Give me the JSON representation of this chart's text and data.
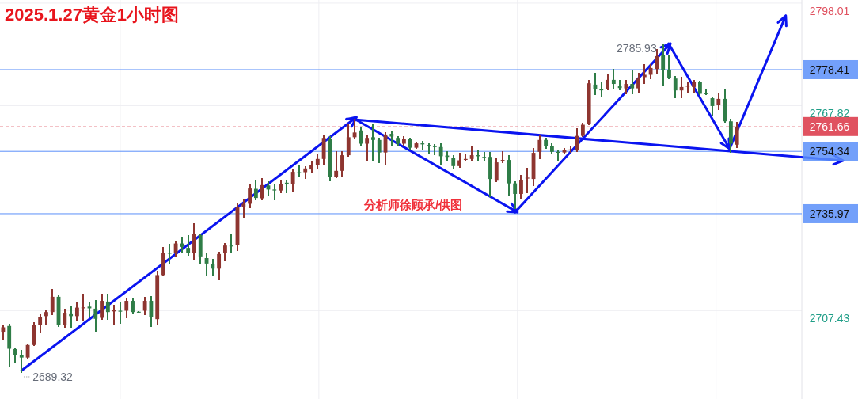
{
  "chart_data": {
    "type": "candlestick",
    "title": "2025.1.27黄金1小时图",
    "categories": [
      null,
      null,
      null,
      null,
      null,
      null,
      null,
      null,
      null,
      null,
      null,
      null,
      null,
      null,
      null,
      null,
      null,
      null,
      null,
      null,
      null,
      null,
      null,
      null,
      null,
      null,
      null,
      null,
      null,
      null,
      null,
      null,
      null,
      null,
      null,
      null,
      null,
      null,
      null,
      null,
      null,
      null,
      null,
      null,
      null,
      null,
      null,
      null,
      null,
      null,
      null,
      null,
      null,
      null,
      null,
      null,
      null,
      null,
      null,
      null,
      null,
      null,
      null,
      null,
      null,
      null,
      null,
      null,
      null,
      null,
      null,
      null,
      null,
      null,
      null,
      null,
      null,
      null,
      null,
      null,
      null,
      null,
      null,
      null,
      null,
      null,
      null,
      null,
      null,
      null,
      null,
      null,
      null,
      null,
      null,
      null,
      null,
      null,
      null,
      null,
      null,
      null,
      null,
      null,
      null,
      null,
      null,
      null,
      null,
      null,
      null,
      null,
      null,
      null,
      null,
      null,
      null,
      null,
      null,
      null,
      null,
      null,
      null,
      null,
      null,
      null,
      null,
      null,
      null,
      null
    ],
    "ohlc": [
      [
        2701.2,
        2702.9,
        2699.0,
        2702.5
      ],
      [
        2702.9,
        2703.3,
        2690.9,
        2696.2
      ],
      [
        2696.1,
        2696.2,
        2692.4,
        2694.4
      ],
      [
        2694.4,
        2695.5,
        2689.32,
        2693.6
      ],
      [
        2693.6,
        2697.5,
        2693.6,
        2697.3
      ],
      [
        2697.3,
        2703.7,
        2697.3,
        2703.2
      ],
      [
        2703.2,
        2706.4,
        2701.2,
        2705.6
      ],
      [
        2705.8,
        2707.4,
        2703.3,
        2707.0
      ],
      [
        2707.0,
        2713.6,
        2706.4,
        2711.5
      ],
      [
        2711.5,
        2711.6,
        2702.9,
        2703.3
      ],
      [
        2703.3,
        2707.8,
        2702.7,
        2706.8
      ],
      [
        2706.6,
        2708.6,
        2702.7,
        2705.8
      ],
      [
        2705.8,
        2709.8,
        2704.7,
        2708.3
      ],
      [
        2708.1,
        2712.1,
        2704.7,
        2708.4
      ],
      [
        2708.6,
        2709.8,
        2705.6,
        2708.1
      ],
      [
        2708.0,
        2710.3,
        2701.4,
        2705.0
      ],
      [
        2705.3,
        2712.1,
        2705.0,
        2710.3
      ],
      [
        2710.1,
        2712.1,
        2705.0,
        2707.0
      ],
      [
        2707.2,
        2708.8,
        2703.2,
        2707.6
      ],
      [
        2707.4,
        2709.7,
        2703.7,
        2707.3
      ],
      [
        2707.4,
        2711.1,
        2705.4,
        2710.3
      ],
      [
        2710.3,
        2711.1,
        2706.8,
        2707.0
      ],
      [
        2707.1,
        2707.1,
        2707.0,
        2707.0
      ],
      [
        2707.4,
        2711.2,
        2706.4,
        2710.3
      ],
      [
        2710.3,
        2711.5,
        2702.9,
        2705.5
      ],
      [
        2704.9,
        2718.9,
        2703.3,
        2717.9
      ],
      [
        2717.9,
        2725.9,
        2717.7,
        2724.5
      ],
      [
        2724.5,
        2726.9,
        2721.3,
        2724.2
      ],
      [
        2724.4,
        2727.8,
        2723.5,
        2727.2
      ],
      [
        2727.2,
        2729.0,
        2724.7,
        2726.2
      ],
      [
        2725.9,
        2729.4,
        2723.9,
        2724.5
      ],
      [
        2724.4,
        2732.9,
        2722.7,
        2729.9
      ],
      [
        2729.7,
        2730.0,
        2721.6,
        2723.4
      ],
      [
        2722.9,
        2724.1,
        2718.1,
        2721.3
      ],
      [
        2721.2,
        2722.4,
        2718.1,
        2719.8
      ],
      [
        2719.8,
        2724.5,
        2716.5,
        2724.1
      ],
      [
        2724.4,
        2727.0,
        2722.1,
        2726.6
      ],
      [
        2726.6,
        2729.9,
        2724.7,
        2726.5
      ],
      [
        2726.8,
        2738.7,
        2725.2,
        2737.9
      ],
      [
        2737.9,
        2740.2,
        2734.8,
        2738.9
      ],
      [
        2738.9,
        2744.7,
        2737.9,
        2743.4
      ],
      [
        2743.3,
        2745.7,
        2740.2,
        2740.6
      ],
      [
        2740.5,
        2746.2,
        2740.2,
        2744.4
      ],
      [
        2744.3,
        2745.3,
        2741.4,
        2743.1
      ],
      [
        2743.1,
        2744.3,
        2740.2,
        2743.0
      ],
      [
        2742.8,
        2745.7,
        2742.3,
        2744.8
      ],
      [
        2745.1,
        2745.7,
        2742.2,
        2744.9
      ],
      [
        2744.8,
        2748.8,
        2742.8,
        2748.3
      ],
      [
        2748.2,
        2750.0,
        2747.2,
        2748.0
      ],
      [
        2748.2,
        2749.8,
        2746.5,
        2749.3
      ],
      [
        2749.0,
        2751.1,
        2748.0,
        2750.4
      ],
      [
        2750.4,
        2753.2,
        2749.2,
        2752.1
      ],
      [
        2752.1,
        2758.9,
        2750.7,
        2758.3
      ],
      [
        2758.1,
        2758.5,
        2745.7,
        2746.9
      ],
      [
        2746.9,
        2754.2,
        2746.7,
        2748.6
      ],
      [
        2748.6,
        2754.2,
        2747.0,
        2753.2
      ],
      [
        2753.2,
        2762.0,
        2753.1,
        2758.5
      ],
      [
        2758.5,
        2763.6,
        2758.1,
        2759.9
      ],
      [
        2760.5,
        2761.2,
        2756.3,
        2756.6
      ],
      [
        2756.6,
        2758.9,
        2751.9,
        2758.3
      ],
      [
        2758.5,
        2762.0,
        2751.5,
        2757.7
      ],
      [
        2757.7,
        2758.1,
        2751.1,
        2754.0
      ],
      [
        2754.0,
        2759.8,
        2750.4,
        2759.3
      ],
      [
        2759.5,
        2760.2,
        2756.2,
        2758.7
      ],
      [
        2758.3,
        2758.7,
        2756.2,
        2756.6
      ],
      [
        2756.6,
        2758.5,
        2756.2,
        2757.9
      ],
      [
        2757.9,
        2758.1,
        2755.2,
        2755.4
      ],
      [
        2755.4,
        2757.0,
        2755.3,
        2756.7
      ],
      [
        2756.7,
        2757.1,
        2755.0,
        2756.4
      ],
      [
        2756.2,
        2756.6,
        2753.9,
        2755.9
      ],
      [
        2755.9,
        2756.3,
        2753.5,
        2755.6
      ],
      [
        2755.6,
        2756.6,
        2750.7,
        2752.9
      ],
      [
        2753.1,
        2754.2,
        2751.5,
        2752.7
      ],
      [
        2752.5,
        2753.1,
        2749.6,
        2750.0
      ],
      [
        2750.0,
        2753.7,
        2749.8,
        2751.7
      ],
      [
        2751.9,
        2753.2,
        2751.5,
        2752.1
      ],
      [
        2752.1,
        2755.6,
        2751.5,
        2753.2
      ],
      [
        2753.2,
        2754.5,
        2751.9,
        2752.9
      ],
      [
        2752.7,
        2753.9,
        2751.9,
        2752.5
      ],
      [
        2752.7,
        2754.0,
        2741.0,
        2746.2
      ],
      [
        2745.7,
        2752.3,
        2745.5,
        2751.1
      ],
      [
        2751.5,
        2754.2,
        2751.1,
        2751.8
      ],
      [
        2751.8,
        2753.1,
        2741.4,
        2744.9
      ],
      [
        2744.9,
        2745.3,
        2737.5,
        2741.8
      ],
      [
        2741.8,
        2747.2,
        2740.6,
        2745.8
      ],
      [
        2746.4,
        2749.3,
        2742.2,
        2746.6
      ],
      [
        2746.2,
        2755.0,
        2744.3,
        2753.9
      ],
      [
        2754.2,
        2758.9,
        2752.4,
        2757.7
      ],
      [
        2757.7,
        2758.1,
        2755.4,
        2756.0
      ],
      [
        2755.8,
        2756.6,
        2753.7,
        2754.2
      ],
      [
        2754.2,
        2754.6,
        2751.5,
        2754.0
      ],
      [
        2754.0,
        2755.0,
        2753.7,
        2754.8
      ],
      [
        2754.7,
        2755.8,
        2754.2,
        2754.9
      ],
      [
        2754.6,
        2761.0,
        2754.5,
        2758.9
      ],
      [
        2758.9,
        2762.5,
        2758.9,
        2762.2
      ],
      [
        2762.4,
        2775.2,
        2762.2,
        2774.4
      ],
      [
        2774.0,
        2777.3,
        2771.1,
        2772.6
      ],
      [
        2772.6,
        2774.7,
        2770.8,
        2772.5
      ],
      [
        2772.6,
        2776.8,
        2772.5,
        2775.4
      ],
      [
        2775.4,
        2778.3,
        2773.1,
        2774.2
      ],
      [
        2773.5,
        2775.2,
        2772.6,
        2773.0
      ],
      [
        2772.9,
        2775.2,
        2771.3,
        2774.2
      ],
      [
        2774.2,
        2777.9,
        2771.3,
        2772.9
      ],
      [
        2772.9,
        2777.2,
        2771.7,
        2775.8
      ],
      [
        2776.2,
        2779.9,
        2774.4,
        2776.9
      ],
      [
        2776.9,
        2779.9,
        2775.8,
        2778.9
      ],
      [
        2778.6,
        2784.2,
        2777.5,
        2782.4
      ],
      [
        2782.6,
        2785.93,
        2774.0,
        2778.3
      ],
      [
        2778.3,
        2782.6,
        2775.8,
        2776.0
      ],
      [
        2775.8,
        2776.2,
        2770.2,
        2772.3
      ],
      [
        2772.3,
        2776.0,
        2770.3,
        2773.3
      ],
      [
        2773.4,
        2774.4,
        2771.7,
        2773.7
      ],
      [
        2773.3,
        2775.2,
        2771.6,
        2774.7
      ],
      [
        2774.7,
        2775.0,
        2771.1,
        2771.3
      ],
      [
        2771.6,
        2772.5,
        2771.1,
        2771.2
      ],
      [
        2770.0,
        2770.2,
        2765.1,
        2767.7
      ],
      [
        2768.0,
        2771.1,
        2766.7,
        2769.8
      ],
      [
        2769.8,
        2772.5,
        2763.0,
        2763.2
      ],
      [
        2763.2,
        2763.6,
        2754.2,
        2756.6
      ],
      [
        2756.3,
        2762.8,
        2755.6,
        2761.66
      ],
      null,
      null,
      null,
      null,
      null,
      null,
      null,
      null,
      null,
      null
    ],
    "ylim": [
      2681.39,
      2798.93
    ],
    "yticks": [
      2798.01,
      2767.82,
      2707.43
    ],
    "grid": true,
    "ref_lines": [
      {
        "axis": "y",
        "value": 2778.41,
        "label": "2778.41",
        "color": "#5b8ff9"
      },
      {
        "axis": "y",
        "value": 2761.66,
        "label": "2761.66",
        "color": "#e05260",
        "line_style": "dashed"
      },
      {
        "axis": "y",
        "value": 2754.34,
        "label": "2754.34",
        "color": "#5b8ff9"
      },
      {
        "axis": "y",
        "value": 2735.97,
        "label": "2735.97",
        "color": "#5b8ff9"
      }
    ],
    "annotations": [
      "2785.93",
      "2689.32",
      "分析师徐顾承/供图"
    ]
  }
}
